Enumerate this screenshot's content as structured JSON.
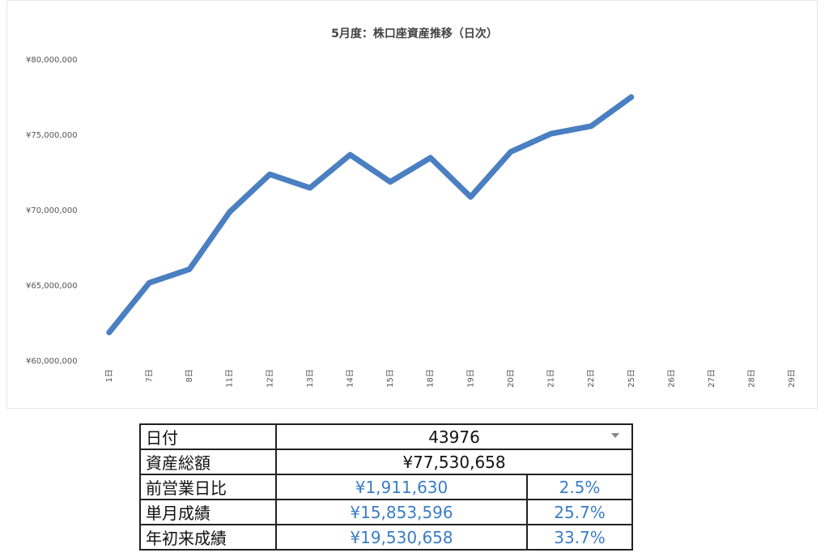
{
  "chart_data": {
    "type": "line",
    "title": "5月度：株口座資産推移（日次）",
    "categories": [
      "1日",
      "7日",
      "8日",
      "11日",
      "12日",
      "13日",
      "14日",
      "15日",
      "18日",
      "19日",
      "20日",
      "21日",
      "22日",
      "25日",
      "26日",
      "27日",
      "28日",
      "29日"
    ],
    "series": [
      {
        "name": "資産総額",
        "color": "#4a7fc1",
        "values": [
          61900000,
          65200000,
          66100000,
          69900000,
          72400000,
          71500000,
          73700000,
          71900000,
          73500000,
          70900000,
          73900000,
          75100000,
          75600000,
          77530658,
          null,
          null,
          null,
          null
        ]
      }
    ],
    "ylim": [
      60000000,
      80000000
    ],
    "yticks": [
      {
        "value": 60000000,
        "label": "¥60,000,000"
      },
      {
        "value": 65000000,
        "label": "¥65,000,000"
      },
      {
        "value": 70000000,
        "label": "¥70,000,000"
      },
      {
        "value": 75000000,
        "label": "¥75,000,000"
      },
      {
        "value": 80000000,
        "label": "¥80,000,000"
      }
    ],
    "grid": false
  },
  "table": {
    "rows": [
      [
        "日付",
        "43976"
      ],
      [
        "資産総額",
        "¥77,530,658"
      ],
      [
        "前営業日比",
        "¥1,911,630",
        "2.5%"
      ],
      [
        "単月成績",
        "¥15,853,596",
        "25.7%"
      ],
      [
        "年初来成績",
        "¥19,530,658",
        "33.7%"
      ]
    ]
  }
}
